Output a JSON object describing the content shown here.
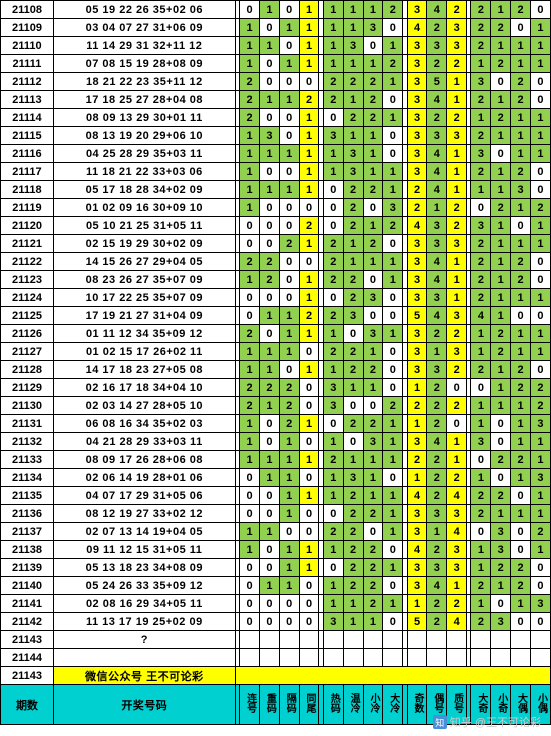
{
  "watermark": "知乎 @王不可论彩",
  "promo_issue": "21143",
  "promo_text": "微信公众号 王不可论彩",
  "footer": {
    "issue_label": "期数",
    "code_label": "开奖号码",
    "stat_labels": [
      "连号",
      "重码",
      "隔码",
      "同尾",
      "热码",
      "温冷",
      "小冷",
      "大冷",
      "奇数",
      "偶号",
      "质号",
      "大奇",
      "小奇",
      "大偶",
      "小偶"
    ]
  },
  "color_rules": {
    "yellow_cols": [
      3,
      8,
      9,
      10
    ],
    "green_vals_a": [
      1,
      2
    ],
    "mid_block_cols": [
      4,
      5,
      6,
      7
    ],
    "last_block_cols": [
      11,
      12,
      13,
      14
    ]
  },
  "rows": [
    {
      "issue": "21108",
      "code": "05 19 22 26 35+02 06",
      "stats": [
        0,
        1,
        0,
        1,
        1,
        1,
        1,
        2,
        3,
        4,
        2,
        2,
        1,
        2,
        0
      ]
    },
    {
      "issue": "21109",
      "code": "03 04 07 27 31+06 09",
      "stats": [
        1,
        0,
        1,
        1,
        1,
        1,
        3,
        0,
        4,
        2,
        3,
        2,
        2,
        0,
        1
      ]
    },
    {
      "issue": "21110",
      "code": "11 14 29 31 32+11 12",
      "stats": [
        1,
        1,
        0,
        1,
        1,
        3,
        0,
        1,
        3,
        3,
        3,
        2,
        1,
        1,
        1
      ]
    },
    {
      "issue": "21111",
      "code": "07 08 15 19 28+08 09",
      "stats": [
        1,
        0,
        1,
        1,
        1,
        1,
        1,
        2,
        3,
        2,
        2,
        1,
        2,
        1,
        1
      ]
    },
    {
      "issue": "21112",
      "code": "18 21 22 23 35+11 12",
      "stats": [
        2,
        0,
        0,
        0,
        2,
        2,
        2,
        1,
        3,
        5,
        1,
        3,
        0,
        2,
        0
      ]
    },
    {
      "issue": "21113",
      "code": "17 18 25 27 28+04 08",
      "stats": [
        2,
        1,
        1,
        2,
        2,
        1,
        2,
        0,
        3,
        4,
        1,
        2,
        1,
        2,
        0
      ]
    },
    {
      "issue": "21114",
      "code": "08 09 13 29 30+01 11",
      "stats": [
        2,
        0,
        0,
        1,
        0,
        2,
        2,
        1,
        3,
        2,
        2,
        1,
        2,
        1,
        1
      ]
    },
    {
      "issue": "21115",
      "code": "08 13 19 20 29+06 10",
      "stats": [
        1,
        3,
        0,
        1,
        3,
        1,
        1,
        0,
        3,
        3,
        3,
        2,
        1,
        1,
        1
      ]
    },
    {
      "issue": "21116",
      "code": "04 25 28 29 35+03 11",
      "stats": [
        1,
        1,
        1,
        1,
        1,
        3,
        1,
        0,
        3,
        4,
        1,
        3,
        0,
        1,
        1
      ]
    },
    {
      "issue": "21117",
      "code": "11 18 21 22 33+03 06",
      "stats": [
        1,
        0,
        0,
        1,
        1,
        3,
        1,
        1,
        3,
        4,
        1,
        2,
        1,
        2,
        0
      ]
    },
    {
      "issue": "21118",
      "code": "05 17 18 28 34+02 09",
      "stats": [
        1,
        1,
        1,
        1,
        0,
        2,
        2,
        1,
        2,
        4,
        1,
        1,
        1,
        3,
        0
      ]
    },
    {
      "issue": "21119",
      "code": "01 02 09 16 30+09 10",
      "stats": [
        1,
        0,
        0,
        0,
        0,
        2,
        0,
        3,
        2,
        1,
        2,
        0,
        2,
        1,
        2
      ]
    },
    {
      "issue": "21120",
      "code": "05 10 21 25 31+05 11",
      "stats": [
        0,
        0,
        0,
        2,
        0,
        2,
        1,
        2,
        4,
        3,
        2,
        3,
        1,
        0,
        1
      ]
    },
    {
      "issue": "21121",
      "code": "02 15 19 29 30+02 09",
      "stats": [
        0,
        0,
        2,
        1,
        2,
        1,
        2,
        0,
        3,
        3,
        3,
        2,
        1,
        1,
        1
      ]
    },
    {
      "issue": "21122",
      "code": "14 15 26 27 29+04 05",
      "stats": [
        2,
        2,
        0,
        0,
        2,
        1,
        1,
        1,
        3,
        4,
        1,
        2,
        1,
        2,
        0
      ]
    },
    {
      "issue": "21123",
      "code": "08 23 26 27 35+07 09",
      "stats": [
        1,
        2,
        0,
        1,
        2,
        2,
        0,
        1,
        3,
        4,
        1,
        2,
        1,
        2,
        0
      ]
    },
    {
      "issue": "21124",
      "code": "10 17 22 25 35+07 09",
      "stats": [
        0,
        0,
        0,
        1,
        0,
        2,
        3,
        0,
        3,
        3,
        1,
        2,
        1,
        1,
        1
      ]
    },
    {
      "issue": "21125",
      "code": "17 19 21 27 31+04 09",
      "stats": [
        0,
        1,
        1,
        2,
        2,
        3,
        0,
        0,
        5,
        4,
        3,
        4,
        1,
        0,
        0
      ]
    },
    {
      "issue": "21126",
      "code": "01 11 12 34 35+09 12",
      "stats": [
        2,
        0,
        1,
        1,
        1,
        0,
        3,
        1,
        3,
        2,
        2,
        1,
        2,
        1,
        1
      ]
    },
    {
      "issue": "21127",
      "code": "01 02 15 17 26+02 11",
      "stats": [
        1,
        1,
        1,
        0,
        2,
        2,
        1,
        0,
        3,
        1,
        3,
        1,
        2,
        1,
        1
      ]
    },
    {
      "issue": "21128",
      "code": "14 17 18 23 27+05 08",
      "stats": [
        1,
        1,
        0,
        1,
        1,
        2,
        2,
        0,
        3,
        3,
        2,
        2,
        1,
        2,
        0
      ]
    },
    {
      "issue": "21129",
      "code": "02 16 17 18 34+04 10",
      "stats": [
        2,
        2,
        2,
        0,
        3,
        1,
        1,
        0,
        1,
        2,
        0,
        0,
        1,
        2,
        2
      ]
    },
    {
      "issue": "21130",
      "code": "02 03 14 27 28+05 10",
      "stats": [
        2,
        1,
        2,
        0,
        3,
        0,
        0,
        2,
        2,
        2,
        2,
        1,
        1,
        1,
        2
      ]
    },
    {
      "issue": "21131",
      "code": "06 08 16 34 35+02 03",
      "stats": [
        1,
        0,
        2,
        1,
        0,
        2,
        2,
        1,
        1,
        2,
        0,
        1,
        0,
        1,
        3
      ]
    },
    {
      "issue": "21132",
      "code": "04 21 28 29 33+03 11",
      "stats": [
        1,
        0,
        1,
        0,
        1,
        0,
        3,
        1,
        3,
        4,
        1,
        3,
        0,
        1,
        1
      ]
    },
    {
      "issue": "21133",
      "code": "08 09 17 26 28+06 08",
      "stats": [
        1,
        1,
        1,
        1,
        2,
        1,
        1,
        1,
        2,
        2,
        1,
        0,
        2,
        2,
        1
      ]
    },
    {
      "issue": "21134",
      "code": "02 06 14 19 28+01 06",
      "stats": [
        0,
        1,
        1,
        0,
        1,
        3,
        1,
        0,
        1,
        2,
        2,
        1,
        0,
        1,
        3
      ]
    },
    {
      "issue": "21135",
      "code": "04 07 17 29 31+05 06",
      "stats": [
        0,
        0,
        1,
        1,
        1,
        2,
        1,
        1,
        4,
        2,
        4,
        2,
        2,
        0,
        1
      ]
    },
    {
      "issue": "21136",
      "code": "08 12 19 27 33+02 12",
      "stats": [
        0,
        0,
        1,
        0,
        0,
        2,
        2,
        1,
        3,
        3,
        3,
        2,
        1,
        1,
        1
      ]
    },
    {
      "issue": "21137",
      "code": "02 07 13 14 19+04 05",
      "stats": [
        1,
        1,
        0,
        0,
        2,
        2,
        0,
        1,
        3,
        1,
        4,
        0,
        3,
        0,
        2
      ]
    },
    {
      "issue": "21138",
      "code": "09 11 12 15 31+05 11",
      "stats": [
        1,
        0,
        1,
        1,
        1,
        2,
        2,
        0,
        4,
        2,
        3,
        1,
        3,
        0,
        1
      ]
    },
    {
      "issue": "21139",
      "code": "05 13 18 23 34+08 09",
      "stats": [
        0,
        0,
        1,
        1,
        0,
        2,
        2,
        1,
        3,
        3,
        3,
        1,
        2,
        2,
        0
      ]
    },
    {
      "issue": "21140",
      "code": "05 24 26 33 35+09 12",
      "stats": [
        0,
        1,
        1,
        0,
        1,
        2,
        2,
        0,
        3,
        4,
        1,
        2,
        1,
        2,
        0
      ]
    },
    {
      "issue": "21141",
      "code": "02 08 16 29 34+05 11",
      "stats": [
        0,
        0,
        0,
        0,
        1,
        1,
        2,
        1,
        1,
        2,
        2,
        1,
        0,
        1,
        3
      ]
    },
    {
      "issue": "21142",
      "code": "11 13 17 19 25+02 09",
      "stats": [
        0,
        0,
        0,
        0,
        3,
        1,
        1,
        0,
        5,
        2,
        4,
        2,
        3,
        0,
        0
      ]
    },
    {
      "issue": "21143",
      "code": "?",
      "stats": [
        "",
        "",
        "",
        "",
        "",
        "",
        "",
        "",
        "",
        "",
        "",
        "",
        "",
        "",
        ""
      ]
    },
    {
      "issue": "21144",
      "code": "",
      "stats": [
        "",
        "",
        "",
        "",
        "",
        "",
        "",
        "",
        "",
        "",
        "",
        "",
        "",
        "",
        ""
      ]
    }
  ]
}
